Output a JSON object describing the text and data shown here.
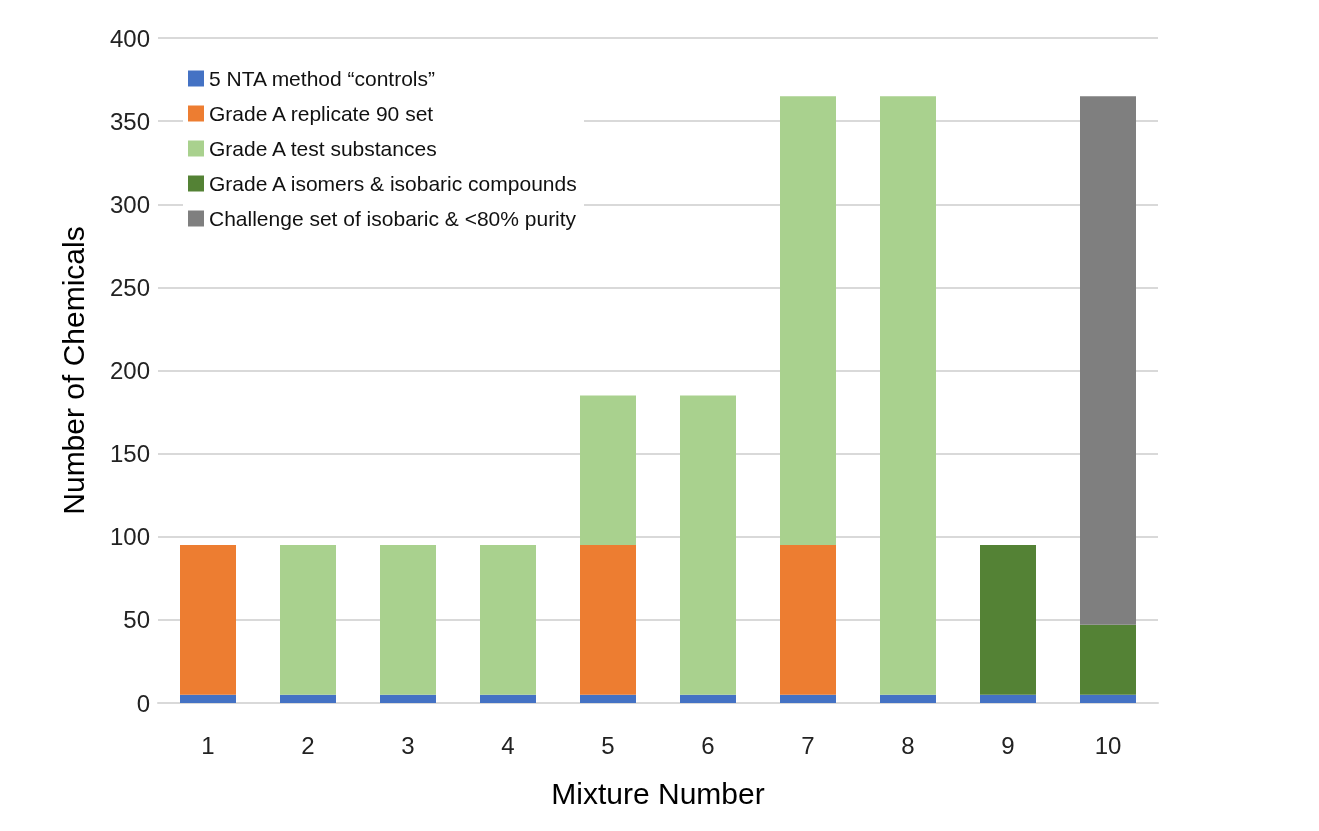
{
  "chart_data": {
    "type": "bar",
    "stacked": true,
    "xlabel": "Mixture Number",
    "ylabel": "Number of Chemicals",
    "categories": [
      "1",
      "2",
      "3",
      "4",
      "5",
      "6",
      "7",
      "8",
      "9",
      "10"
    ],
    "series": [
      {
        "name": "5 NTA method “controls”",
        "color": "#4472c4",
        "values": [
          5,
          5,
          5,
          5,
          5,
          5,
          5,
          5,
          5,
          5
        ]
      },
      {
        "name": "Grade A replicate 90 set",
        "color": "#ed7d31",
        "values": [
          90,
          null,
          null,
          null,
          90,
          null,
          90,
          null,
          null,
          null
        ]
      },
      {
        "name": "Grade A test substances",
        "color": "#a9d18e",
        "values": [
          null,
          90,
          90,
          90,
          90,
          180,
          270,
          360,
          null,
          null
        ]
      },
      {
        "name": "Grade A isomers & isobaric compounds",
        "color": "#548235",
        "values": [
          null,
          null,
          null,
          null,
          null,
          null,
          null,
          null,
          90,
          42
        ]
      },
      {
        "name": "Challenge set of isobaric & <80% purity",
        "color": "#7f7f7f",
        "values": [
          null,
          null,
          null,
          null,
          null,
          null,
          null,
          null,
          null,
          318
        ]
      }
    ],
    "ylim": [
      0,
      400
    ],
    "yticks": [
      0,
      50,
      100,
      150,
      200,
      250,
      300,
      350,
      400
    ],
    "grid": "y",
    "legend": "top left"
  }
}
